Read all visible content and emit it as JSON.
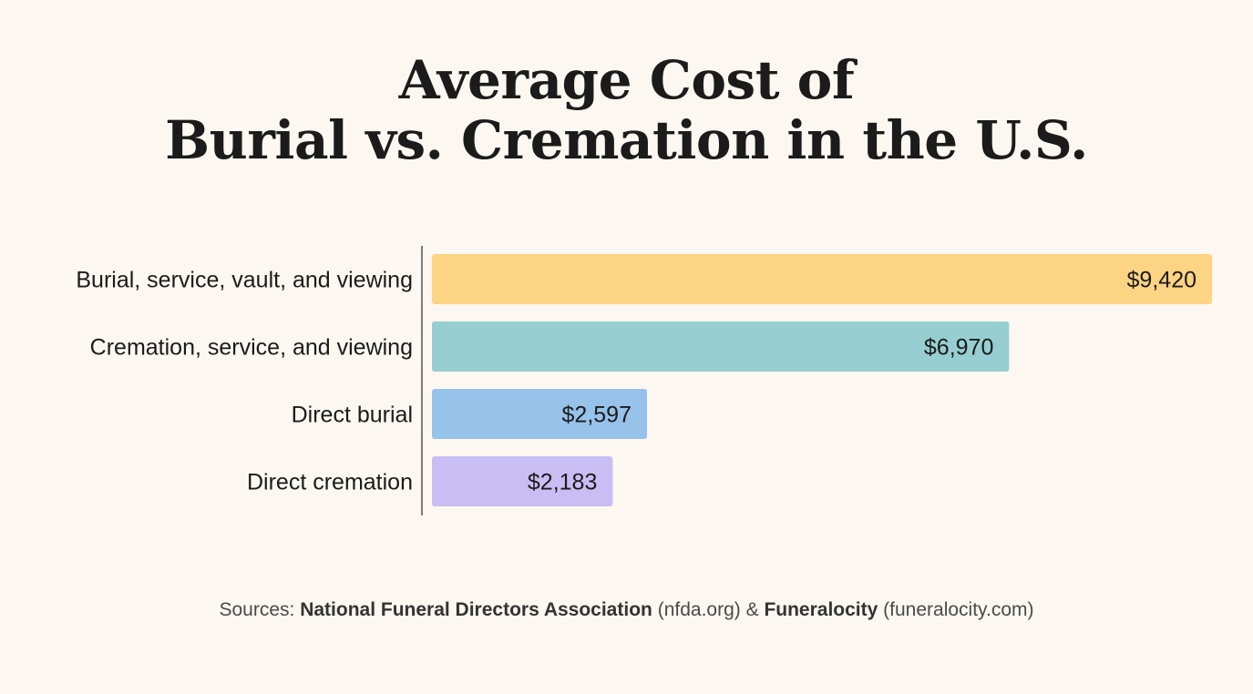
{
  "title_line1": "Average Cost of",
  "title_line2": "Burial vs. Cremation in the U.S.",
  "chart_data": {
    "type": "bar",
    "orientation": "horizontal",
    "categories": [
      "Burial, service, vault, and viewing",
      "Cremation, service, and viewing",
      "Direct burial",
      "Direct cremation"
    ],
    "values": [
      9420,
      6970,
      2597,
      2183
    ],
    "value_labels": [
      "$9,420",
      "$6,970",
      "$2,597",
      "$2,183"
    ],
    "colors": [
      "#fdd384",
      "#96ced1",
      "#97c2ea",
      "#c9bef4"
    ],
    "xlim": [
      0,
      9420
    ],
    "grid": false,
    "title": "Average Cost of Burial vs. Cremation in the U.S."
  },
  "sources": {
    "prefix": "Sources:",
    "source1_name": "National Funeral Directors Association",
    "source1_site": "(nfda.org)",
    "joiner": "&",
    "source2_name": "Funeralocity",
    "source2_site": "(funeralocity.com)"
  }
}
